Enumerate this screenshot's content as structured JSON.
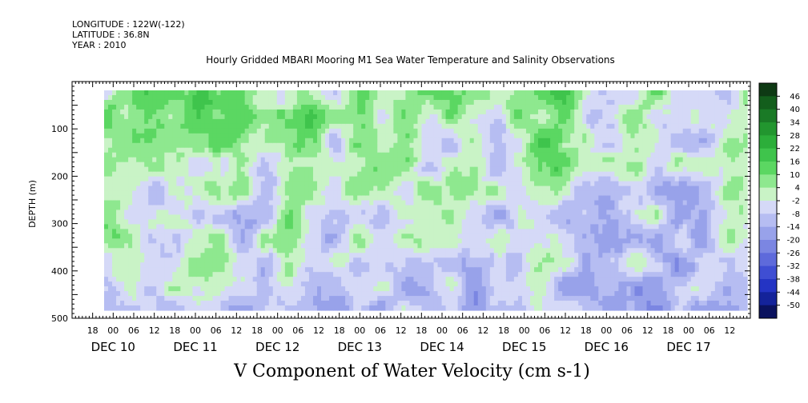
{
  "meta": {
    "longitude": "LONGITUDE : 122W(-122)",
    "latitude": "LATITUDE : 36.8N",
    "year": "YEAR : 2010"
  },
  "chart_data": {
    "type": "heatmap",
    "title": "Hourly Gridded MBARI Mooring M1 Sea Water Temperature and Salinity Observations",
    "variable_label": "V Component of Water Velocity (cm s-1)",
    "ylabel": "DEPTH (m)",
    "ylim": [
      500,
      0
    ],
    "y_ticks": [
      "100",
      "200",
      "300",
      "400",
      "500"
    ],
    "x_hour_ticks": [
      "18",
      "00",
      "06",
      "12",
      "18",
      "00",
      "06",
      "12",
      "18",
      "00",
      "06",
      "12",
      "18",
      "00",
      "06",
      "12",
      "18",
      "00",
      "06",
      "12",
      "18",
      "00",
      "06",
      "12",
      "18",
      "00",
      "06",
      "12",
      "18",
      "00",
      "06",
      "12"
    ],
    "x_day_labels": [
      "DEC 10",
      "DEC 11",
      "DEC 12",
      "DEC 13",
      "DEC 14",
      "DEC 15",
      "DEC 16",
      "DEC 17"
    ],
    "colorbar": {
      "labels": [
        "46",
        "40",
        "34",
        "28",
        "22",
        "16",
        "10",
        "4",
        "-2",
        "-8",
        "-14",
        "-20",
        "-26",
        "-32",
        "-38",
        "-44",
        "-50"
      ],
      "colors": [
        "#0e3a14",
        "#135e1c",
        "#1a7a26",
        "#22962f",
        "#2cae3a",
        "#3fc44c",
        "#5bd762",
        "#8ee88f",
        "#c9f3c6",
        "#d5d9f7",
        "#b6bdf2",
        "#98a2ea",
        "#7b86e2",
        "#5e6adb",
        "#3f4ed3",
        "#2434c4",
        "#14239a",
        "#0a125e"
      ]
    },
    "data_description": "V velocity field by depth (approx 20-490 m) and time (Dec 10 12h to Dec 17 18h); values mostly between -20 and +20 cm/s, alternating positive (green) and negative (blue) vertical bands."
  }
}
